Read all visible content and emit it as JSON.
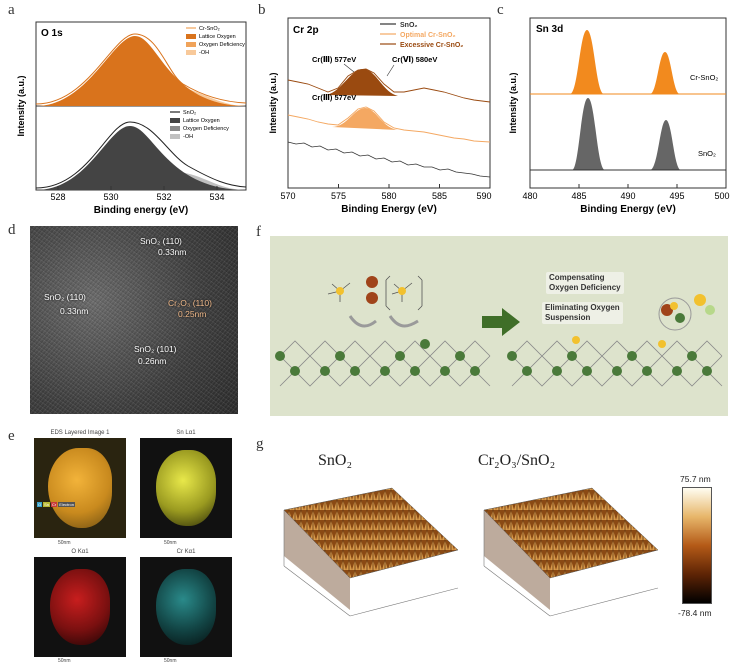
{
  "panels": {
    "a": {
      "letter": "a",
      "title": "O 1s",
      "xlabel": "Binding energy (eV)",
      "ylabel": "Intensity (a.u.)",
      "xticks": [
        "528",
        "530",
        "532",
        "534"
      ],
      "legend_top": [
        "Cr-SnO₂",
        "Lattice Oxygen",
        "Oxygen Deficiency",
        "-OH"
      ],
      "legend_bottom": [
        "SnO₂",
        "Lattice Oxygen",
        "Oxygen Deficiency",
        "-OH"
      ],
      "colors": {
        "lattice_top": "#d9731c",
        "def_top": "#f0a35a",
        "oh_top": "#f8c99a",
        "lattice_bot": "#444444",
        "def_bot": "#8a8a8a",
        "oh_bot": "#c0c0c0"
      }
    },
    "b": {
      "letter": "b",
      "title": "Cr 2p",
      "xlabel": "Binding Energy (eV)",
      "ylabel": "Intensity (a.u.)",
      "xticks": [
        "570",
        "575",
        "580",
        "585",
        "590"
      ],
      "legend": [
        "SnO₂",
        "Optimal Cr-SnO₂",
        "Excessive Cr-SnO₂"
      ],
      "ann1": "Cr(Ⅲ) 577eV",
      "ann2": "Cr(Ⅵ) 580eV",
      "ann3": "Cr(Ⅲ) 577eV",
      "colors": {
        "sno2": "#333333",
        "optimal": "#f4a862",
        "excessive": "#9a4a10"
      }
    },
    "c": {
      "letter": "c",
      "title": "Sn 3d",
      "xlabel": "Binding Energy (eV)",
      "ylabel": "Intensity (a.u.)",
      "xticks": [
        "480",
        "485",
        "490",
        "495",
        "500"
      ],
      "label_top": "Cr-SnO₂",
      "label_bottom": "SnO₂"
    },
    "d": {
      "letter": "d",
      "labels": [
        "SnO₂ (110)",
        "0.33nm",
        "SnO₂ (110)",
        "0.33nm",
        "Cr₂O₃ (110)",
        "0.25nm",
        "SnO₂ (101)",
        "0.26nm"
      ]
    },
    "e": {
      "letter": "e",
      "titles": [
        "EDS Layered Image 1",
        "Sn Lα1",
        "O Kα1",
        "Cr Kα1"
      ],
      "scale": "50nm",
      "legend_chips": [
        "O",
        "Sn",
        "Cr",
        "Electron"
      ]
    },
    "f": {
      "letter": "f",
      "box1": [
        "Compensating",
        "Oxygen Deficiency"
      ],
      "box2": [
        "Eliminating Oxygen",
        "Suspension"
      ]
    },
    "g": {
      "letter": "g",
      "label_left": "SnO₂",
      "label_right": "Cr₂O₃/SnO₂",
      "colorbar_max": "75.7 nm",
      "colorbar_min": "-78.4 nm"
    }
  }
}
